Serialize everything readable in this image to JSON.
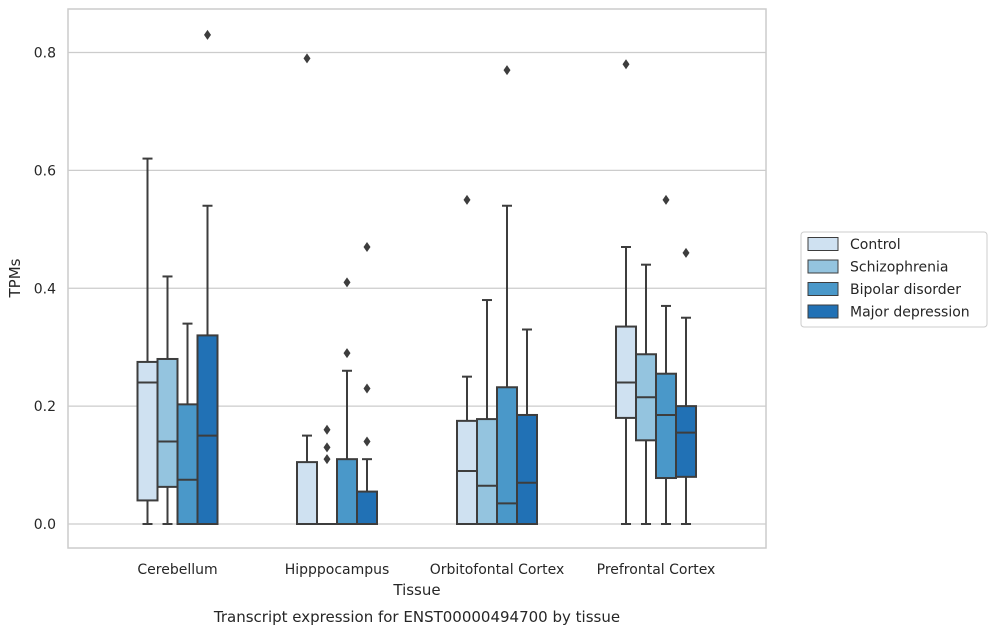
{
  "chart_data": {
    "type": "box",
    "title": "",
    "caption": "Transcript expression for ENST00000494700 by tissue",
    "xlabel": "Tissue",
    "ylabel": "TPMs",
    "ylim": [
      -0.04,
      0.874
    ],
    "yticks": [
      0.0,
      0.2,
      0.4,
      0.6,
      0.8
    ],
    "ytick_labels": [
      "0.0",
      "0.2",
      "0.4",
      "0.6",
      "0.8"
    ],
    "grid": "horizontal",
    "legend_position": "right",
    "categories": [
      "Cerebellum",
      "Hipppocampus",
      "Orbitofontal Cortex",
      "Prefrontal Cortex"
    ],
    "series": [
      {
        "name": "Control",
        "color": "#cfe1f1",
        "boxes": [
          {
            "min": 0.0,
            "q1": 0.04,
            "median": 0.24,
            "q3": 0.275,
            "max": 0.62,
            "outliers": []
          },
          {
            "min": 0.0,
            "q1": 0.0,
            "median": 0.0,
            "q3": 0.105,
            "max": 0.15,
            "outliers": [
              0.79
            ]
          },
          {
            "min": 0.0,
            "q1": 0.0,
            "median": 0.09,
            "q3": 0.175,
            "max": 0.25,
            "outliers": [
              0.55
            ]
          },
          {
            "min": 0.0,
            "q1": 0.18,
            "median": 0.24,
            "q3": 0.335,
            "max": 0.47,
            "outliers": [
              0.78
            ]
          }
        ]
      },
      {
        "name": "Schizophrenia",
        "color": "#94c4df",
        "boxes": [
          {
            "min": 0.0,
            "q1": 0.063,
            "median": 0.14,
            "q3": 0.28,
            "max": 0.42,
            "outliers": []
          },
          {
            "min": 0.0,
            "q1": 0.0,
            "median": 0.0,
            "q3": 0.0,
            "max": 0.0,
            "outliers": [
              0.11,
              0.13,
              0.16
            ]
          },
          {
            "min": 0.0,
            "q1": 0.0,
            "median": 0.065,
            "q3": 0.178,
            "max": 0.38,
            "outliers": []
          },
          {
            "min": 0.0,
            "q1": 0.142,
            "median": 0.215,
            "q3": 0.288,
            "max": 0.44,
            "outliers": []
          }
        ]
      },
      {
        "name": "Bipolar disorder",
        "color": "#4a98c9",
        "boxes": [
          {
            "min": 0.0,
            "q1": 0.0,
            "median": 0.075,
            "q3": 0.203,
            "max": 0.34,
            "outliers": []
          },
          {
            "min": 0.0,
            "q1": 0.0,
            "median": 0.0,
            "q3": 0.11,
            "max": 0.26,
            "outliers": [
              0.29,
              0.41
            ]
          },
          {
            "min": 0.0,
            "q1": 0.0,
            "median": 0.035,
            "q3": 0.232,
            "max": 0.54,
            "outliers": [
              0.77
            ]
          },
          {
            "min": 0.0,
            "q1": 0.078,
            "median": 0.185,
            "q3": 0.255,
            "max": 0.37,
            "outliers": [
              0.55
            ]
          }
        ]
      },
      {
        "name": "Major depression",
        "color": "#2171b5",
        "boxes": [
          {
            "min": 0.0,
            "q1": 0.0,
            "median": 0.15,
            "q3": 0.32,
            "max": 0.54,
            "outliers": [
              0.83
            ]
          },
          {
            "min": 0.0,
            "q1": 0.0,
            "median": 0.0,
            "q3": 0.055,
            "max": 0.11,
            "outliers": [
              0.14,
              0.23,
              0.47
            ]
          },
          {
            "min": 0.0,
            "q1": 0.0,
            "median": 0.07,
            "q3": 0.185,
            "max": 0.33,
            "outliers": []
          },
          {
            "min": 0.0,
            "q1": 0.08,
            "median": 0.155,
            "q3": 0.2,
            "max": 0.35,
            "outliers": [
              0.46
            ]
          }
        ]
      }
    ]
  }
}
